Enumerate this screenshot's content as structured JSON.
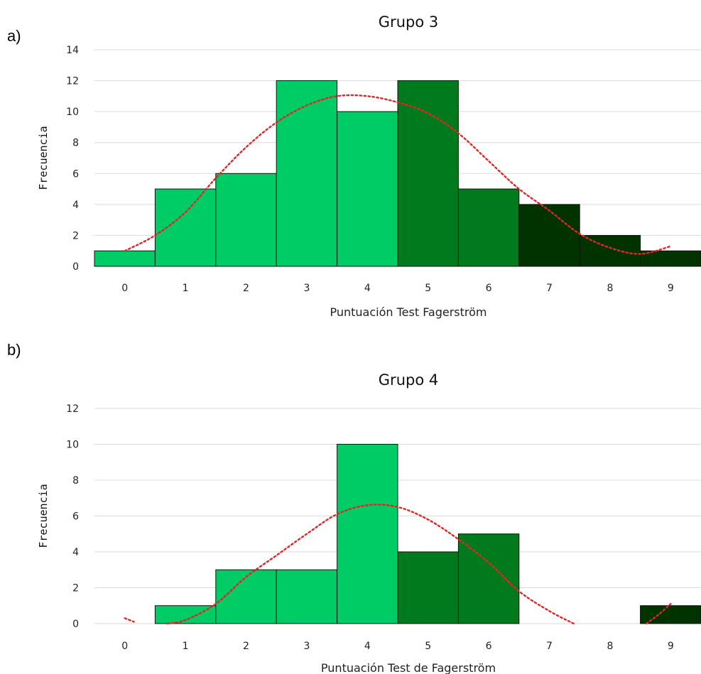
{
  "colors": {
    "light": "#00cc66",
    "mid": "#007a1c",
    "dark": "#003300",
    "curve": "#e32525"
  },
  "chart_data": [
    {
      "type": "bar",
      "panel_label": "a)",
      "title": "Grupo 3",
      "xlabel": "Puntuación Test Fagerström",
      "ylabel": "Frecuencia",
      "categories": [
        "0",
        "1",
        "2",
        "3",
        "4",
        "5",
        "6",
        "7",
        "8",
        "9"
      ],
      "values": [
        1,
        5,
        6,
        12,
        10,
        12,
        5,
        4,
        2,
        1
      ],
      "bar_colors": [
        "light",
        "light",
        "light",
        "light",
        "light",
        "mid",
        "mid",
        "dark",
        "dark",
        "dark"
      ],
      "ylim": [
        0,
        14
      ],
      "yticks": [
        0,
        2,
        4,
        6,
        8,
        10,
        12,
        14
      ],
      "grid": true,
      "fit_curve": {
        "style": "dotted-red",
        "x": [
          0,
          0.5,
          1,
          1.5,
          2,
          2.5,
          3,
          3.5,
          4,
          4.5,
          5,
          5.5,
          6,
          6.5,
          7,
          7.5,
          8,
          8.5,
          9
        ],
        "y": [
          1.0,
          2.0,
          3.5,
          5.7,
          7.7,
          9.3,
          10.4,
          11.0,
          11.0,
          10.6,
          9.9,
          8.6,
          6.8,
          5.0,
          3.6,
          2.1,
          1.2,
          0.8,
          1.3
        ]
      }
    },
    {
      "type": "bar",
      "panel_label": "b)",
      "title": "Grupo 4",
      "xlabel": "Puntuación Test de Fagerström",
      "ylabel": "Frecuencia",
      "categories": [
        "0",
        "1",
        "2",
        "3",
        "4",
        "5",
        "6",
        "7",
        "8",
        "9"
      ],
      "values": [
        0,
        1,
        3,
        3,
        10,
        4,
        5,
        0,
        0,
        1
      ],
      "bar_colors": [
        "light",
        "light",
        "light",
        "light",
        "light",
        "mid",
        "mid",
        "dark",
        "dark",
        "dark"
      ],
      "ylim": [
        0,
        12
      ],
      "yticks": [
        0,
        2,
        4,
        6,
        8,
        10,
        12
      ],
      "grid": true,
      "fit_curve": {
        "style": "dotted-red",
        "segments": [
          {
            "x": [
              0,
              0.15
            ],
            "y": [
              0.3,
              0.1
            ]
          },
          {
            "x": [
              0.7,
              1,
              1.5,
              2,
              2.5,
              3,
              3.5,
              4,
              4.5,
              5,
              5.5,
              6,
              6.5,
              7,
              7.4
            ],
            "y": [
              0.0,
              0.2,
              1.1,
              2.6,
              3.8,
              5.0,
              6.1,
              6.6,
              6.5,
              5.8,
              4.7,
              3.4,
              1.8,
              0.7,
              0.0
            ]
          },
          {
            "x": [
              8.6,
              8.8,
              9
            ],
            "y": [
              0.0,
              0.5,
              1.1
            ]
          }
        ]
      }
    }
  ]
}
